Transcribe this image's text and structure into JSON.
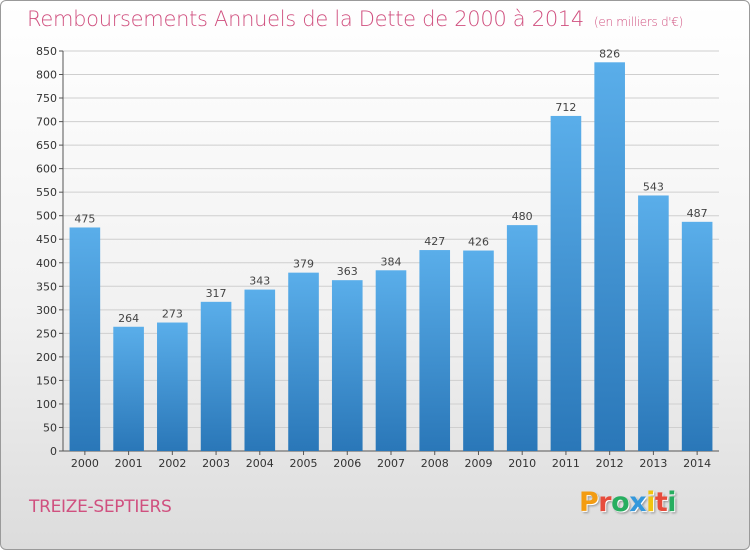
{
  "header": {
    "title": "Remboursements Annuels de la Dette de 2000 à 2014",
    "unit": "(en milliers d'€)"
  },
  "footer": {
    "commune": "TREIZE-SEPTIERS",
    "logo": [
      "P",
      "r",
      "o",
      "x",
      "i",
      "t",
      "i"
    ]
  },
  "colors": {
    "title": "#d0507f",
    "bar_top": "#5aaeea",
    "bar_bottom": "#2a77b8",
    "grid": "#cfcfcf",
    "logo": [
      "#f39c12",
      "#e74c3c",
      "#27ae60",
      "#3498db",
      "#f1c40f",
      "#e74c3c",
      "#27ae60"
    ]
  },
  "chart_data": {
    "type": "bar",
    "title": "Remboursements Annuels de la Dette de 2000 à 2014",
    "categories": [
      "2000",
      "2001",
      "2002",
      "2003",
      "2004",
      "2005",
      "2006",
      "2007",
      "2008",
      "2009",
      "2010",
      "2011",
      "2012",
      "2013",
      "2014"
    ],
    "values": [
      475,
      264,
      273,
      317,
      343,
      379,
      363,
      384,
      427,
      426,
      480,
      712,
      826,
      543,
      487
    ],
    "ylim": [
      0,
      850
    ],
    "yticks": [
      0,
      50,
      100,
      150,
      200,
      250,
      300,
      350,
      400,
      450,
      500,
      550,
      600,
      650,
      700,
      750,
      800,
      850
    ],
    "grid": true,
    "data_labels": true
  }
}
